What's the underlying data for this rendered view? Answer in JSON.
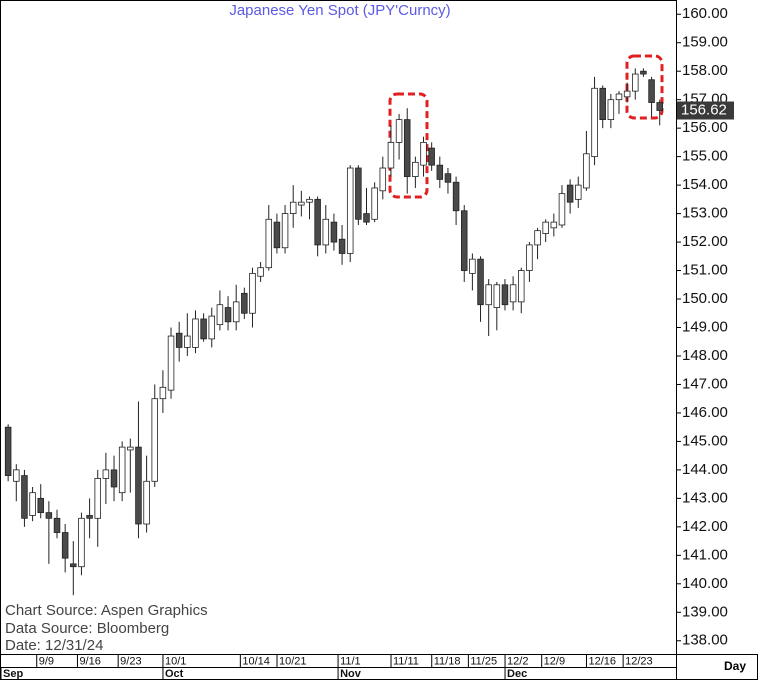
{
  "chart_data": {
    "type": "candlestick",
    "title": "Japanese  Yen  Spot  (JPY'Curncy)",
    "annotations": [
      "Chart  Source:  Aspen  Graphics",
      "Data  Source:  Bloomberg",
      "Date:  12/31/24"
    ],
    "x_axis_label": "Day",
    "up_color": "#ffffff",
    "down_color": "#4a4a4a",
    "title_color": "#5b5be6",
    "open": [
      145.5,
      143.6,
      143.8,
      142.4,
      143.0,
      142.5,
      142.3,
      141.8,
      140.7,
      140.6,
      142.4,
      142.3,
      143.7,
      144.0,
      143.2,
      144.7,
      144.8,
      142.1,
      143.6,
      146.5,
      146.8,
      148.8,
      148.3,
      148.3,
      149.3,
      148.6,
      149.1,
      149.7,
      149.2,
      150.2,
      149.5,
      150.8,
      151.1,
      152.7,
      151.8,
      153.0,
      153.3,
      153.4,
      153.5,
      151.9,
      152.7,
      152.1,
      151.6,
      154.6,
      153.0,
      152.8,
      153.8,
      154.6,
      155.5,
      156.3,
      154.3,
      154.7,
      155.3,
      154.7,
      154.4,
      154.1,
      153.1,
      150.9,
      151.4,
      149.8,
      149.7,
      150.5,
      149.9,
      149.9,
      151.0,
      151.9,
      152.3,
      152.5,
      152.6,
      154.0,
      153.5,
      153.9,
      155.0,
      157.4,
      156.3,
      157.0,
      157.1,
      157.3,
      158.0,
      157.7,
      156.9
    ],
    "high": [
      145.6,
      144.2,
      144.0,
      143.4,
      143.5,
      142.9,
      142.6,
      142.1,
      141.5,
      142.5,
      143.0,
      144.0,
      144.6,
      144.5,
      145.0,
      145.1,
      146.4,
      144.5,
      147.0,
      147.5,
      149.0,
      149.2,
      149.5,
      149.6,
      149.5,
      149.7,
      150.3,
      150.1,
      150.5,
      150.4,
      151.1,
      151.3,
      153.3,
      153.0,
      153.3,
      154.0,
      153.8,
      153.6,
      153.6,
      153.3,
      153.0,
      152.6,
      154.7,
      154.7,
      153.9,
      154.1,
      155.0,
      156.1,
      156.5,
      156.7,
      155.0,
      155.7,
      155.5,
      155.0,
      154.6,
      154.3,
      153.3,
      151.6,
      151.5,
      150.7,
      150.6,
      150.7,
      150.8,
      151.1,
      152.0,
      152.5,
      152.8,
      153.0,
      154.0,
      154.2,
      154.3,
      155.9,
      157.8,
      157.5,
      157.2,
      157.3,
      157.6,
      158.1,
      158.1,
      157.8,
      157.0
    ],
    "low": [
      143.6,
      142.9,
      142.0,
      142.2,
      142.3,
      140.7,
      141.6,
      140.4,
      139.6,
      140.3,
      141.6,
      141.3,
      142.8,
      142.9,
      142.9,
      143.2,
      141.6,
      141.8,
      143.4,
      146.0,
      146.5,
      147.8,
      148.0,
      148.1,
      148.5,
      148.3,
      148.9,
      148.9,
      148.9,
      149.3,
      149.0,
      150.6,
      151.0,
      151.6,
      151.6,
      152.5,
      152.9,
      152.8,
      151.5,
      151.6,
      151.7,
      151.2,
      151.3,
      152.6,
      152.6,
      152.7,
      153.5,
      154.3,
      154.9,
      153.7,
      153.9,
      154.3,
      154.5,
      153.9,
      153.7,
      152.6,
      150.6,
      150.3,
      149.2,
      148.7,
      148.9,
      149.6,
      149.6,
      149.5,
      150.6,
      151.4,
      152.0,
      152.2,
      152.5,
      153.0,
      153.2,
      153.8,
      154.7,
      156.0,
      156.0,
      156.5,
      156.9,
      157.0,
      157.8,
      156.4,
      156.1
    ],
    "close": [
      143.8,
      144.0,
      142.3,
      143.2,
      142.5,
      142.3,
      141.8,
      140.9,
      140.6,
      142.3,
      142.3,
      143.7,
      144.0,
      143.4,
      144.8,
      144.8,
      142.1,
      143.6,
      146.5,
      146.9,
      148.7,
      148.3,
      148.7,
      149.3,
      148.6,
      149.4,
      149.8,
      149.2,
      149.9,
      149.5,
      150.9,
      151.1,
      152.8,
      151.8,
      153.0,
      153.4,
      153.4,
      153.5,
      151.9,
      152.8,
      152.0,
      151.6,
      154.6,
      152.8,
      152.7,
      153.9,
      154.6,
      155.5,
      156.3,
      154.3,
      154.8,
      155.5,
      154.7,
      154.2,
      154.1,
      153.1,
      151.0,
      151.4,
      149.8,
      150.5,
      150.5,
      149.8,
      150.5,
      151.0,
      151.9,
      152.4,
      152.7,
      152.7,
      153.7,
      153.4,
      154.0,
      155.1,
      157.4,
      156.3,
      157.0,
      157.2,
      157.3,
      157.9,
      157.9,
      156.9,
      156.62
    ],
    "xticks": [
      {
        "value": 4,
        "label": "9/9"
      },
      {
        "value": 9,
        "label": "9/16"
      },
      {
        "value": 14,
        "label": "9/23"
      },
      {
        "value": 19.5,
        "label": "10/1"
      },
      {
        "value": 29,
        "label": "10/14"
      },
      {
        "value": 33.5,
        "label": "10/21"
      },
      {
        "value": 41,
        "label": "11/1"
      },
      {
        "value": 47.5,
        "label": "11/11"
      },
      {
        "value": 52.5,
        "label": "11/18"
      },
      {
        "value": 57,
        "label": "11/25"
      },
      {
        "value": 61.5,
        "label": "12/2"
      },
      {
        "value": 66,
        "label": "12/9"
      },
      {
        "value": 71.5,
        "label": "12/16"
      },
      {
        "value": 76,
        "label": "12/23"
      }
    ],
    "month_ticks": [
      {
        "value": -0.5,
        "label": "Sep"
      },
      {
        "value": 19.5,
        "label": "Oct"
      },
      {
        "value": 41,
        "label": "Nov"
      },
      {
        "value": 61.5,
        "label": "Dec"
      }
    ],
    "xlim": [
      -1,
      82
    ],
    "ylim": [
      137.5,
      160.5
    ],
    "yticks": [
      {
        "value": 138,
        "label": "138.00"
      },
      {
        "value": 139,
        "label": "139.00"
      },
      {
        "value": 140,
        "label": "140.00"
      },
      {
        "value": 141,
        "label": "141.00"
      },
      {
        "value": 142,
        "label": "142.00"
      },
      {
        "value": 143,
        "label": "143.00"
      },
      {
        "value": 144,
        "label": "144.00"
      },
      {
        "value": 145,
        "label": "145.00"
      },
      {
        "value": 146,
        "label": "146.00"
      },
      {
        "value": 147,
        "label": "147.00"
      },
      {
        "value": 148,
        "label": "148.00"
      },
      {
        "value": 149,
        "label": "149.00"
      },
      {
        "value": 150,
        "label": "150.00"
      },
      {
        "value": 151,
        "label": "151.00"
      },
      {
        "value": 152,
        "label": "152.00"
      },
      {
        "value": 153,
        "label": "153.00"
      },
      {
        "value": 154,
        "label": "154.00"
      },
      {
        "value": 155,
        "label": "155.00"
      },
      {
        "value": 156,
        "label": "156.00"
      },
      {
        "value": 157,
        "label": "157.00"
      },
      {
        "value": 158,
        "label": "158.00"
      },
      {
        "value": 159,
        "label": "159.00"
      },
      {
        "value": 160,
        "label": "160.00"
      }
    ]
  }
}
